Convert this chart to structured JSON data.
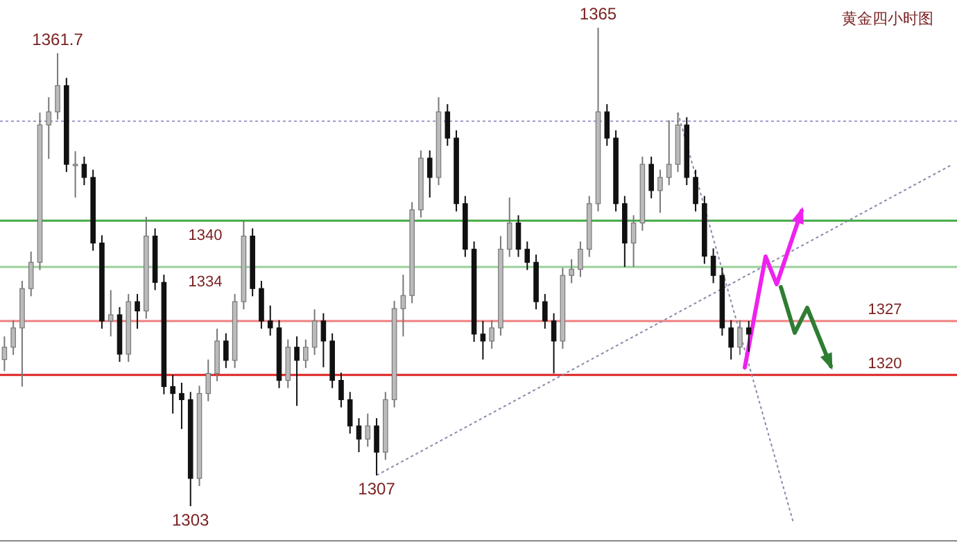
{
  "chart_data": {
    "type": "candlestick",
    "title": "黄金四小时图",
    "categories": [
      null,
      null,
      null,
      null,
      null,
      null,
      null,
      null,
      null,
      null,
      null,
      null,
      null,
      null,
      null,
      null,
      null,
      null,
      null,
      null,
      null,
      null,
      null,
      null,
      null,
      null,
      null,
      null,
      null,
      null,
      null,
      null,
      null,
      null,
      null,
      null,
      null,
      null,
      null,
      null,
      null,
      null,
      null,
      null,
      null,
      null,
      null,
      null,
      null,
      null,
      null,
      null,
      null,
      null,
      null,
      null,
      null,
      null,
      null,
      null,
      null,
      null,
      null,
      null,
      null,
      null,
      null,
      null,
      null,
      null,
      null,
      null,
      null,
      null,
      null,
      null,
      null,
      null,
      null,
      null,
      null,
      null,
      null,
      null,
      null,
      null,
      null,
      null,
      null,
      null,
      null,
      null,
      null,
      null,
      null,
      null,
      null,
      null,
      null,
      null,
      null,
      null,
      null,
      null,
      null,
      null,
      null,
      null
    ],
    "ohlc": [
      [
        1322.0,
        1325.0,
        1320.5,
        1323.6
      ],
      [
        1323.6,
        1327.1,
        1322.6,
        1326.1
      ],
      [
        1326.1,
        1332.2,
        1318.5,
        1331.2
      ],
      [
        1331.2,
        1336.0,
        1330.2,
        1334.6
      ],
      [
        1334.6,
        1354.0,
        1333.6,
        1352.4
      ],
      [
        1352.4,
        1356.0,
        1348.0,
        1354.1
      ],
      [
        1354.1,
        1361.7,
        1353.1,
        1357.5
      ],
      [
        1357.5,
        1358.5,
        1346.3,
        1347.3
      ],
      [
        1347.3,
        1349.0,
        1343.0,
        1347.3
      ],
      [
        1347.3,
        1348.3,
        1344.6,
        1345.6
      ],
      [
        1345.6,
        1346.6,
        1336.1,
        1337.1
      ],
      [
        1337.1,
        1338.1,
        1326.0,
        1327.0
      ],
      [
        1327.0,
        1331.0,
        1325.0,
        1327.8
      ],
      [
        1327.8,
        1328.8,
        1321.7,
        1322.7
      ],
      [
        1322.7,
        1330.5,
        1321.7,
        1329.5
      ],
      [
        1329.5,
        1330.5,
        1326.0,
        1328.3
      ],
      [
        1328.3,
        1340.5,
        1327.3,
        1338.0
      ],
      [
        1338.0,
        1339.0,
        1331.0,
        1332.0
      ],
      [
        1332.0,
        1333.0,
        1317.5,
        1318.5
      ],
      [
        1318.5,
        1320.0,
        1315.0,
        1317.6
      ],
      [
        1317.6,
        1319.0,
        1313.0,
        1316.8
      ],
      [
        1316.8,
        1317.8,
        1303.0,
        1306.6
      ],
      [
        1306.6,
        1318.6,
        1305.6,
        1317.6
      ],
      [
        1317.6,
        1322.0,
        1316.6,
        1320.2
      ],
      [
        1320.2,
        1326.0,
        1319.2,
        1324.4
      ],
      [
        1324.4,
        1325.4,
        1320.9,
        1321.9
      ],
      [
        1321.9,
        1330.5,
        1320.9,
        1329.5
      ],
      [
        1329.5,
        1340.0,
        1328.5,
        1338.0
      ],
      [
        1338.0,
        1339.0,
        1330.2,
        1331.2
      ],
      [
        1331.2,
        1332.2,
        1326.0,
        1327.0
      ],
      [
        1327.0,
        1329.0,
        1325.1,
        1326.1
      ],
      [
        1326.1,
        1327.1,
        1318.3,
        1319.3
      ],
      [
        1319.3,
        1324.6,
        1318.3,
        1323.6
      ],
      [
        1323.6,
        1325.0,
        1316.0,
        1321.9
      ],
      [
        1321.9,
        1324.6,
        1320.9,
        1323.6
      ],
      [
        1323.6,
        1328.5,
        1322.6,
        1327.0
      ],
      [
        1327.0,
        1328.0,
        1321.0,
        1324.4
      ],
      [
        1324.4,
        1325.4,
        1318.3,
        1319.3
      ],
      [
        1319.3,
        1320.3,
        1315.8,
        1316.8
      ],
      [
        1316.8,
        1317.8,
        1312.4,
        1313.4
      ],
      [
        1313.4,
        1314.4,
        1310.0,
        1311.7
      ],
      [
        1311.7,
        1315.0,
        1310.7,
        1313.4
      ],
      [
        1313.4,
        1314.4,
        1307.0,
        1310.0
      ],
      [
        1310.0,
        1317.8,
        1309.0,
        1316.8
      ],
      [
        1316.8,
        1329.6,
        1315.8,
        1328.6
      ],
      [
        1328.6,
        1333.0,
        1325.0,
        1330.3
      ],
      [
        1330.3,
        1342.4,
        1329.3,
        1341.4
      ],
      [
        1341.4,
        1349.1,
        1340.4,
        1348.1
      ],
      [
        1348.1,
        1349.1,
        1343.0,
        1345.6
      ],
      [
        1345.6,
        1356.0,
        1344.6,
        1354.1
      ],
      [
        1354.1,
        1355.1,
        1349.7,
        1350.7
      ],
      [
        1350.7,
        1351.7,
        1341.2,
        1342.2
      ],
      [
        1342.2,
        1343.2,
        1335.3,
        1336.3
      ],
      [
        1336.3,
        1337.3,
        1324.3,
        1325.3
      ],
      [
        1325.3,
        1327.0,
        1322.0,
        1324.4
      ],
      [
        1324.4,
        1327.1,
        1323.4,
        1326.1
      ],
      [
        1326.1,
        1338.0,
        1325.1,
        1336.3
      ],
      [
        1336.3,
        1343.0,
        1335.3,
        1339.7
      ],
      [
        1339.7,
        1340.7,
        1335.3,
        1336.3
      ],
      [
        1336.3,
        1337.3,
        1333.6,
        1334.6
      ],
      [
        1334.6,
        1335.6,
        1328.5,
        1329.5
      ],
      [
        1329.5,
        1330.5,
        1326.0,
        1327.0
      ],
      [
        1327.0,
        1328.0,
        1320.2,
        1324.4
      ],
      [
        1324.4,
        1333.9,
        1323.4,
        1332.9
      ],
      [
        1332.9,
        1335.0,
        1331.9,
        1333.7
      ],
      [
        1333.7,
        1337.3,
        1332.7,
        1336.3
      ],
      [
        1336.3,
        1343.2,
        1335.3,
        1342.2
      ],
      [
        1342.2,
        1365.0,
        1341.2,
        1354.1
      ],
      [
        1354.1,
        1355.1,
        1349.7,
        1350.7
      ],
      [
        1350.7,
        1351.7,
        1341.2,
        1342.2
      ],
      [
        1342.2,
        1343.2,
        1334.0,
        1337.1
      ],
      [
        1337.1,
        1340.7,
        1334.0,
        1339.7
      ],
      [
        1339.7,
        1348.3,
        1338.7,
        1347.3
      ],
      [
        1347.3,
        1348.3,
        1342.9,
        1343.9
      ],
      [
        1343.9,
        1346.6,
        1341.0,
        1345.6
      ],
      [
        1345.6,
        1353.0,
        1344.6,
        1347.3
      ],
      [
        1347.3,
        1354.0,
        1346.3,
        1352.4
      ],
      [
        1352.4,
        1353.4,
        1344.6,
        1345.6
      ],
      [
        1345.6,
        1346.6,
        1341.2,
        1342.2
      ],
      [
        1342.2,
        1343.2,
        1334.4,
        1335.4
      ],
      [
        1335.4,
        1336.4,
        1331.9,
        1332.9
      ],
      [
        1332.9,
        1333.9,
        1325.1,
        1326.1
      ],
      [
        1326.1,
        1327.1,
        1322.0,
        1323.6
      ],
      [
        1323.6,
        1327.1,
        1322.6,
        1326.1
      ],
      [
        1326.1,
        1327.0,
        1323.0,
        1325.3
      ],
      null,
      null,
      null,
      null,
      null,
      null,
      null,
      null,
      null,
      null,
      null,
      null,
      null,
      null,
      null,
      null,
      null,
      null,
      null,
      null,
      null,
      null,
      null
    ],
    "series": [
      {
        "type": "line",
        "color": "#8888aa",
        "line_style": "dotted",
        "values": [
          null,
          null,
          null,
          null,
          null,
          null,
          null,
          null,
          null,
          null,
          null,
          null,
          null,
          null,
          null,
          null,
          null,
          null,
          null,
          null,
          null,
          null,
          null,
          null,
          null,
          null,
          null,
          null,
          null,
          null,
          null,
          null,
          null,
          null,
          null,
          null,
          null,
          null,
          null,
          null,
          null,
          null,
          1307.0,
          null,
          null,
          null,
          null,
          null,
          null,
          null,
          null,
          null,
          null,
          null,
          null,
          null,
          null,
          null,
          null,
          null,
          null,
          null,
          null,
          null,
          null,
          null,
          null,
          null,
          null,
          null,
          null,
          null,
          null,
          null,
          null,
          null,
          null,
          null,
          null,
          null,
          null,
          null,
          null,
          null,
          null,
          null,
          null,
          null,
          null,
          null,
          null,
          null,
          null,
          null,
          null,
          null,
          null,
          null,
          null,
          null,
          null,
          null,
          null,
          null,
          null,
          null,
          null,
          1347.3
        ]
      },
      {
        "type": "line",
        "color": "#8888aa",
        "line_style": "dotted",
        "values": [
          null,
          null,
          null,
          null,
          null,
          null,
          null,
          null,
          null,
          null,
          null,
          null,
          null,
          null,
          null,
          null,
          null,
          null,
          null,
          null,
          null,
          null,
          null,
          null,
          null,
          null,
          null,
          null,
          null,
          null,
          null,
          null,
          null,
          null,
          null,
          null,
          null,
          null,
          null,
          null,
          null,
          null,
          null,
          null,
          null,
          null,
          null,
          null,
          null,
          null,
          null,
          null,
          null,
          null,
          null,
          null,
          null,
          null,
          null,
          null,
          null,
          null,
          null,
          null,
          null,
          null,
          null,
          null,
          null,
          null,
          null,
          null,
          null,
          null,
          null,
          null,
          1354.0,
          null,
          null,
          null,
          null,
          null,
          null,
          null,
          null,
          null,
          null,
          null,
          null,
          1301.0,
          null,
          null,
          null,
          null,
          null,
          null,
          null,
          null,
          null,
          null,
          null,
          null,
          null,
          null,
          null,
          null,
          null,
          null
        ]
      }
    ],
    "ref_lines": [
      {
        "axis": "y",
        "value": 1340,
        "label": "1340",
        "color": "#44aa44"
      },
      {
        "axis": "y",
        "value": 1334,
        "label": "1334",
        "color": "#99d099"
      },
      {
        "axis": "y",
        "value": 1327,
        "label": "1327",
        "color": "#f08080"
      },
      {
        "axis": "y",
        "value": 1320,
        "label": "1320",
        "color": "#dd2222"
      },
      {
        "axis": "y",
        "value": 1352.9,
        "color": "#9999cc",
        "line_style": "dotted"
      }
    ],
    "annotations": [
      {
        "text": "1361.7",
        "y": 1361.7
      },
      {
        "text": "1365",
        "y": 1365.0
      },
      {
        "text": "1303",
        "y": 1303.0
      },
      {
        "text": "1307",
        "y": 1307.0
      }
    ]
  }
}
